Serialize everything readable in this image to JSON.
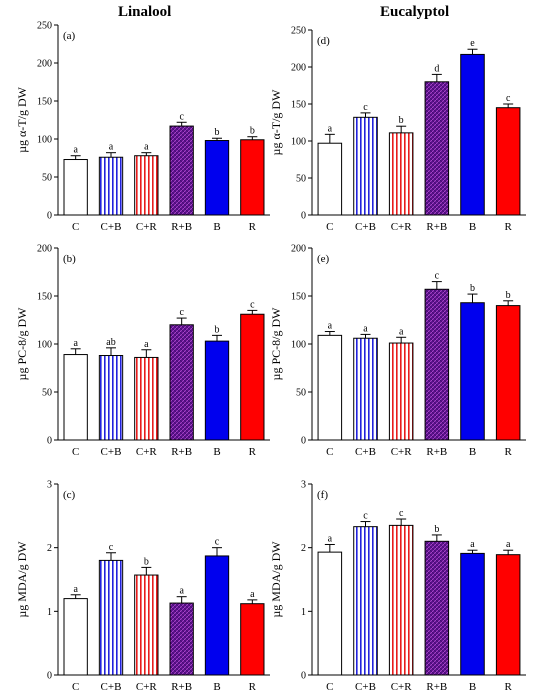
{
  "titles": {
    "left": "Linalool",
    "right": "Eucalyptol"
  },
  "colors": {
    "C": "#ffffff",
    "C+B": "#2222dd",
    "C+R": "#e81c1c",
    "R+B": "#6a1a9a",
    "B": "#0000ee",
    "R": "#ff0000"
  },
  "chart_data": [
    {
      "type": "bar",
      "label": "(a)",
      "ylabel": "µg α-T/g DW",
      "categories": [
        "C",
        "C+B",
        "C+R",
        "R+B",
        "B",
        "R"
      ],
      "values": [
        73,
        76,
        78,
        117,
        98,
        99
      ],
      "errors": [
        5,
        6,
        4,
        5,
        3,
        4
      ],
      "letters": [
        "a",
        "a",
        "a",
        "c",
        "b",
        "b"
      ],
      "ylim": [
        0,
        250
      ],
      "yticks": [
        0,
        50,
        100,
        150,
        200,
        250
      ]
    },
    {
      "type": "bar",
      "label": "(d)",
      "ylabel": "µg α-T/g DW",
      "categories": [
        "C",
        "C+B",
        "C+R",
        "R+B",
        "B",
        "R"
      ],
      "values": [
        97,
        132,
        111,
        180,
        217,
        145
      ],
      "errors": [
        12,
        6,
        9,
        10,
        7,
        5
      ],
      "letters": [
        "a",
        "c",
        "b",
        "d",
        "e",
        "c"
      ],
      "ylim": [
        0,
        250
      ],
      "yticks": [
        0,
        50,
        100,
        150,
        200,
        250
      ]
    },
    {
      "type": "bar",
      "label": "(b)",
      "ylabel": "µg PC-8/g DW",
      "categories": [
        "C",
        "C+B",
        "C+R",
        "R+B",
        "B",
        "R"
      ],
      "values": [
        89,
        88,
        86,
        120,
        103,
        131
      ],
      "errors": [
        6,
        8,
        8,
        7,
        6,
        4
      ],
      "letters": [
        "a",
        "ab",
        "a",
        "c",
        "b",
        "c"
      ],
      "ylim": [
        0,
        200
      ],
      "yticks": [
        0,
        50,
        100,
        150,
        200
      ]
    },
    {
      "type": "bar",
      "label": "(e)",
      "ylabel": "µg PC-8/g DW",
      "categories": [
        "C",
        "C+B",
        "C+R",
        "R+B",
        "B",
        "R"
      ],
      "values": [
        109,
        106,
        101,
        157,
        143,
        140
      ],
      "errors": [
        4,
        4,
        6,
        8,
        9,
        5
      ],
      "letters": [
        "a",
        "a",
        "a",
        "c",
        "b",
        "b"
      ],
      "ylim": [
        0,
        200
      ],
      "yticks": [
        0,
        50,
        100,
        150,
        200
      ]
    },
    {
      "type": "bar",
      "label": "(c)",
      "ylabel": "µg MDA/g DW",
      "categories": [
        "C",
        "C+B",
        "C+R",
        "R+B",
        "B",
        "R"
      ],
      "values": [
        1.2,
        1.8,
        1.57,
        1.13,
        1.87,
        1.12
      ],
      "errors": [
        0.06,
        0.12,
        0.12,
        0.1,
        0.13,
        0.06
      ],
      "letters": [
        "a",
        "c",
        "b",
        "a",
        "c",
        "a"
      ],
      "ylim": [
        0,
        3
      ],
      "yticks": [
        0,
        1,
        2,
        3
      ]
    },
    {
      "type": "bar",
      "label": "(f)",
      "ylabel": "µg MDA/g DW",
      "categories": [
        "C",
        "C+B",
        "C+R",
        "R+B",
        "B",
        "R"
      ],
      "values": [
        1.93,
        2.33,
        2.35,
        2.1,
        1.91,
        1.89
      ],
      "errors": [
        0.12,
        0.08,
        0.1,
        0.1,
        0.05,
        0.07
      ],
      "letters": [
        "a",
        "c",
        "c",
        "b",
        "a",
        "a"
      ],
      "ylim": [
        0,
        3
      ],
      "yticks": [
        0,
        1,
        2,
        3
      ]
    }
  ]
}
